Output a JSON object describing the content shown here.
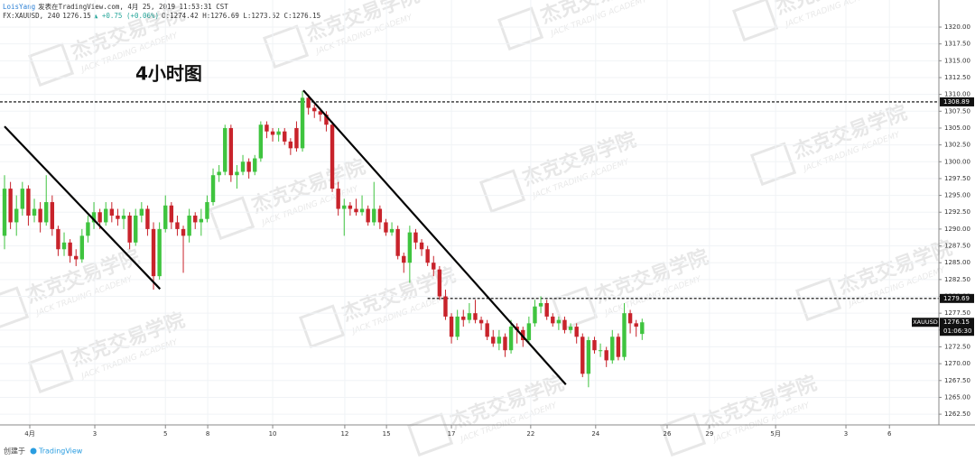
{
  "chart_data": {
    "type": "candlestick",
    "header": {
      "author": "LoisYang",
      "published": "发表在TradingView.com, 4月 25, 2019 11:53:31 CST",
      "symbol": "FX:XAUUSD, 240",
      "last": "1276.15",
      "change": "▲ +0.75 (+0.06%)",
      "ohlc": "O:1274.42 H:1276.69 L:1273.52 C:1276.15"
    },
    "title": "4小时图",
    "watermark": {
      "name": "杰克交易学院",
      "sub": "JACK TRADING ACADEMY"
    },
    "up_color": "#3fc43f",
    "down_color": "#c8232b",
    "candles": [
      [
        1289,
        1298,
        1287,
        1296
      ],
      [
        1296,
        1297,
        1290,
        1291
      ],
      [
        1291,
        1295,
        1289,
        1293
      ],
      [
        1293,
        1297,
        1292,
        1296
      ],
      [
        1296,
        1296.5,
        1290.5,
        1292
      ],
      [
        1292,
        1294.5,
        1291,
        1293
      ],
      [
        1293,
        1294,
        1289.5,
        1291
      ],
      [
        1291,
        1298,
        1290.5,
        1294
      ],
      [
        1294,
        1295,
        1289,
        1290
      ],
      [
        1290,
        1290.5,
        1286,
        1287
      ],
      [
        1287,
        1289.5,
        1286,
        1288
      ],
      [
        1288,
        1288.5,
        1285,
        1286
      ],
      [
        1286,
        1287,
        1284.5,
        1285.5
      ],
      [
        1285.5,
        1290,
        1285,
        1289
      ],
      [
        1289,
        1292,
        1288,
        1291
      ],
      [
        1291,
        1294,
        1290,
        1292.5
      ],
      [
        1292.5,
        1293,
        1290,
        1291
      ],
      [
        1291,
        1294,
        1290.5,
        1293
      ],
      [
        1293,
        1294,
        1291,
        1292
      ],
      [
        1292,
        1293,
        1290.5,
        1291.5
      ],
      [
        1291.5,
        1293,
        1290,
        1292
      ],
      [
        1292,
        1292.5,
        1287,
        1288
      ],
      [
        1288,
        1293,
        1287.5,
        1292
      ],
      [
        1292,
        1294,
        1291,
        1293
      ],
      [
        1293,
        1293.5,
        1289,
        1290
      ],
      [
        1290,
        1291,
        1281,
        1283
      ],
      [
        1283,
        1291,
        1282.5,
        1290
      ],
      [
        1290,
        1295,
        1289.5,
        1293.5
      ],
      [
        1293.5,
        1294,
        1290,
        1291
      ],
      [
        1291,
        1292,
        1289,
        1290
      ],
      [
        1290,
        1290.5,
        1283.5,
        1289
      ],
      [
        1289,
        1293,
        1288,
        1292
      ],
      [
        1292,
        1292.5,
        1290,
        1291
      ],
      [
        1291,
        1293,
        1289,
        1291.5
      ],
      [
        1291.5,
        1295,
        1291,
        1294
      ],
      [
        1294,
        1299,
        1293.5,
        1298
      ],
      [
        1298,
        1299.5,
        1297,
        1298.5
      ],
      [
        1298.5,
        1305.5,
        1298,
        1305
      ],
      [
        1305,
        1305.5,
        1297,
        1298
      ],
      [
        1298,
        1299.5,
        1296,
        1298.5
      ],
      [
        1298.5,
        1301,
        1298,
        1300
      ],
      [
        1300,
        1300.5,
        1297.5,
        1298.5
      ],
      [
        1298.5,
        1301,
        1298,
        1300.5
      ],
      [
        1300.5,
        1306,
        1300,
        1305.5
      ],
      [
        1305.5,
        1306,
        1303.5,
        1304.5
      ],
      [
        1304.5,
        1305,
        1303,
        1304
      ],
      [
        1304,
        1305,
        1303,
        1304.5
      ],
      [
        1304.5,
        1305,
        1302.5,
        1303
      ],
      [
        1303,
        1303.5,
        1301,
        1302
      ],
      [
        1305,
        1306,
        1301.5,
        1302
      ],
      [
        1302,
        1310.5,
        1301.5,
        1309.5
      ],
      [
        1309.5,
        1310,
        1307,
        1308
      ],
      [
        1308,
        1308.5,
        1306.5,
        1307.5
      ],
      [
        1307.5,
        1308,
        1306,
        1307
      ],
      [
        1307,
        1307.5,
        1304.5,
        1305.5
      ],
      [
        1305.5,
        1306,
        1295.5,
        1296
      ],
      [
        1296,
        1297,
        1292,
        1293
      ],
      [
        1293,
        1294.5,
        1289,
        1293.5
      ],
      [
        1293.5,
        1294,
        1292,
        1293
      ],
      [
        1293,
        1294.5,
        1292,
        1292.5
      ],
      [
        1292.5,
        1295,
        1292,
        1293
      ],
      [
        1293,
        1293.5,
        1290.5,
        1291
      ],
      [
        1291,
        1297,
        1290.5,
        1293
      ],
      [
        1293,
        1293.5,
        1290,
        1291
      ],
      [
        1291,
        1291.5,
        1289,
        1289.5
      ],
      [
        1289.5,
        1291,
        1289,
        1290
      ],
      [
        1290,
        1290.5,
        1285.5,
        1286
      ],
      [
        1286,
        1286.5,
        1283.5,
        1285
      ],
      [
        1285,
        1290.5,
        1282,
        1289.5
      ],
      [
        1289.5,
        1290,
        1287,
        1288
      ],
      [
        1288,
        1288.5,
        1286,
        1287
      ],
      [
        1287,
        1287.5,
        1284.5,
        1285
      ],
      [
        1285,
        1286,
        1283,
        1284
      ],
      [
        1284,
        1284.5,
        1279.5,
        1280
      ],
      [
        1280,
        1281,
        1276.5,
        1277
      ],
      [
        1277,
        1277.5,
        1273,
        1274
      ],
      [
        1274,
        1278,
        1273.5,
        1277
      ],
      [
        1277,
        1278,
        1275.5,
        1276.5
      ],
      [
        1276.5,
        1279,
        1276,
        1277.5
      ],
      [
        1277.5,
        1279.5,
        1276,
        1276.5
      ],
      [
        1276.5,
        1277,
        1275,
        1276
      ],
      [
        1276,
        1276.5,
        1273.5,
        1274
      ],
      [
        1274,
        1275,
        1272.5,
        1273
      ],
      [
        1273,
        1275,
        1272,
        1274
      ],
      [
        1274,
        1274.5,
        1271,
        1272
      ],
      [
        1272,
        1276.5,
        1271.5,
        1275.5
      ],
      [
        1275.5,
        1276,
        1273,
        1275
      ],
      [
        1275,
        1275.5,
        1272.5,
        1273.5
      ],
      [
        1273.5,
        1277,
        1273,
        1276
      ],
      [
        1276,
        1279.5,
        1275.5,
        1278.5
      ],
      [
        1278.5,
        1280,
        1277.5,
        1279
      ],
      [
        1279,
        1279.5,
        1276.5,
        1277
      ],
      [
        1277,
        1277.5,
        1275.5,
        1276
      ],
      [
        1276,
        1277,
        1275,
        1276.5
      ],
      [
        1276.5,
        1277,
        1274.5,
        1275
      ],
      [
        1275,
        1276,
        1274.5,
        1275.5
      ],
      [
        1275.5,
        1276,
        1273,
        1274
      ],
      [
        1274,
        1274.5,
        1268,
        1268.5
      ],
      [
        1268.5,
        1274,
        1266.5,
        1273.5
      ],
      [
        1273.5,
        1274,
        1271.5,
        1272
      ],
      [
        1272,
        1273,
        1271,
        1272
      ],
      [
        1272,
        1272.5,
        1269.5,
        1270.5
      ],
      [
        1270.5,
        1275,
        1270,
        1274
      ],
      [
        1274,
        1274.5,
        1270.5,
        1271
      ],
      [
        1271,
        1279,
        1270.5,
        1277.5
      ],
      [
        1277.5,
        1278,
        1274.5,
        1276
      ],
      [
        1276,
        1276.5,
        1274,
        1275.5
      ],
      [
        1274.42,
        1276.69,
        1273.52,
        1276.15
      ]
    ],
    "trend_lines": [
      [
        [
          0,
          1305.25
        ],
        [
          26.1,
          1281.1
        ]
      ],
      [
        [
          50.15,
          1310.6
        ],
        [
          94.2,
          1266.9
        ]
      ]
    ],
    "levels": [
      {
        "value": 1308.89,
        "start": -0.76
      },
      {
        "value": 1279.69,
        "start": 71
      }
    ],
    "level_labels": [
      "1308.89",
      "1279.69"
    ],
    "last_price": {
      "symbol": "XAUUSD",
      "value": 1276.15,
      "label": "1276.15",
      "countdown": "01:06:30"
    },
    "xlim": [
      -0.76,
      156.8
    ],
    "xticks": [
      {
        "value": 4.24,
        "label": "4月"
      },
      {
        "value": 15.15,
        "label": "3"
      },
      {
        "value": 27.0,
        "label": "5"
      },
      {
        "value": 34.1,
        "label": "8"
      },
      {
        "value": 45.0,
        "label": "10"
      },
      {
        "value": 57.1,
        "label": "12"
      },
      {
        "value": 64.1,
        "label": "15"
      },
      {
        "value": 75.0,
        "label": "17"
      },
      {
        "value": 88.3,
        "label": "22"
      },
      {
        "value": 99.2,
        "label": "24"
      },
      {
        "value": 111.2,
        "label": "26"
      },
      {
        "value": 118.3,
        "label": "29"
      },
      {
        "value": 129.4,
        "label": "5月"
      },
      {
        "value": 141.2,
        "label": "3"
      },
      {
        "value": 148.5,
        "label": "6"
      }
    ],
    "ylim": [
      1261,
      1323.3
    ],
    "yticks": [
      {
        "value": 1262.5,
        "label": "1262.50"
      },
      {
        "value": 1265,
        "label": "1265.00"
      },
      {
        "value": 1267.5,
        "label": "1267.50"
      },
      {
        "value": 1270,
        "label": "1270.00"
      },
      {
        "value": 1272.5,
        "label": "1272.50"
      },
      {
        "value": 1275,
        "label": "1275.00"
      },
      {
        "value": 1277.5,
        "label": "1277.50"
      },
      {
        "value": 1280,
        "label": "1280.00"
      },
      {
        "value": 1282.5,
        "label": "1282.50"
      },
      {
        "value": 1285,
        "label": "1285.00"
      },
      {
        "value": 1287.5,
        "label": "1287.50"
      },
      {
        "value": 1290,
        "label": "1290.00"
      },
      {
        "value": 1292.5,
        "label": "1292.50"
      },
      {
        "value": 1295,
        "label": "1295.00"
      },
      {
        "value": 1297.5,
        "label": "1297.50"
      },
      {
        "value": 1300,
        "label": "1300.00"
      },
      {
        "value": 1302.5,
        "label": "1302.50"
      },
      {
        "value": 1305,
        "label": "1305.00"
      },
      {
        "value": 1307.5,
        "label": "1307.50"
      },
      {
        "value": 1310,
        "label": "1310.00"
      },
      {
        "value": 1312.5,
        "label": "1312.50"
      },
      {
        "value": 1315,
        "label": "1315.00"
      },
      {
        "value": 1317.5,
        "label": "1317.50"
      },
      {
        "value": 1320,
        "label": "1320.00"
      }
    ],
    "grid": true,
    "footer": {
      "created": "创建于",
      "brand": "TradingView"
    }
  }
}
